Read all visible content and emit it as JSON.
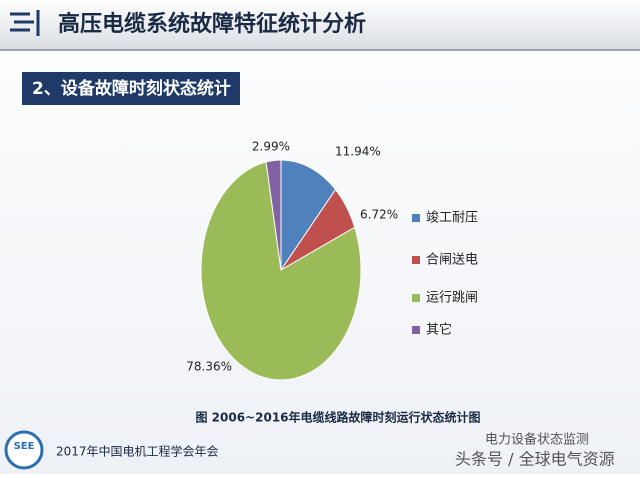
{
  "header": {
    "title": "高压电缆系统故障特征统计分析"
  },
  "section": {
    "title": "2、设备故障时刻状态统计"
  },
  "chart_data": {
    "type": "pie",
    "categories": [
      "竣工耐压",
      "合闸送电",
      "运行跳闸",
      "其它"
    ],
    "values": [
      11.94,
      6.72,
      78.36,
      2.99
    ],
    "value_labels": [
      "11.94%",
      "6.72%",
      "78.36%",
      "2.99%"
    ],
    "colors": [
      "#4f81bd",
      "#c0504d",
      "#9bbb59",
      "#8064a2"
    ],
    "caption": "图    2006~2016年电缆线路故障时刻运行状态统计图"
  },
  "footer": {
    "logo": "SEE",
    "conference": "2017年中国电机工程学会年会",
    "watermark_1": "电力设备状态监测",
    "watermark_2": "头条号 / 全球电气资源"
  }
}
